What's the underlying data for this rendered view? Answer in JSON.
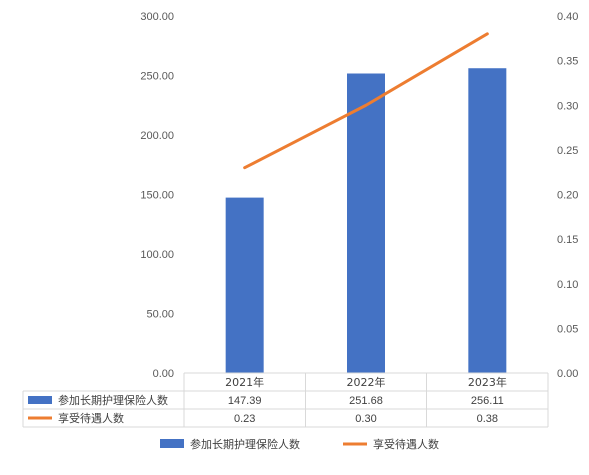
{
  "chart_data": {
    "type": "bar",
    "categories": [
      "2021年",
      "2022年",
      "2023年"
    ],
    "series": [
      {
        "name": "参加长期护理保险人数",
        "type": "bar",
        "axis": "left",
        "color": "#4472C4",
        "values": [
          147.39,
          251.68,
          256.11
        ]
      },
      {
        "name": "享受待遇人数",
        "type": "line",
        "axis": "right",
        "color": "#ED7D31",
        "values": [
          0.23,
          0.3,
          0.38
        ]
      }
    ],
    "y_left": {
      "min": 0,
      "max": 300,
      "ticks": [
        "0.00",
        "50.00",
        "100.00",
        "150.00",
        "200.00",
        "250.00",
        "300.00"
      ]
    },
    "y_right": {
      "min": 0,
      "max": 0.4,
      "ticks": [
        "0.00",
        "0.05",
        "0.10",
        "0.15",
        "0.20",
        "0.25",
        "0.30",
        "0.35",
        "0.40"
      ]
    },
    "table": {
      "rows": [
        {
          "label": "参加长期护理保险人数",
          "values": [
            "147.39",
            "251.68",
            "256.11"
          ]
        },
        {
          "label": "享受待遇人数",
          "values": [
            "0.23",
            "0.30",
            "0.38"
          ]
        }
      ]
    },
    "legend": {
      "position": "bottom",
      "items": [
        "参加长期护理保险人数",
        "享受待遇人数"
      ]
    },
    "grid": false
  }
}
